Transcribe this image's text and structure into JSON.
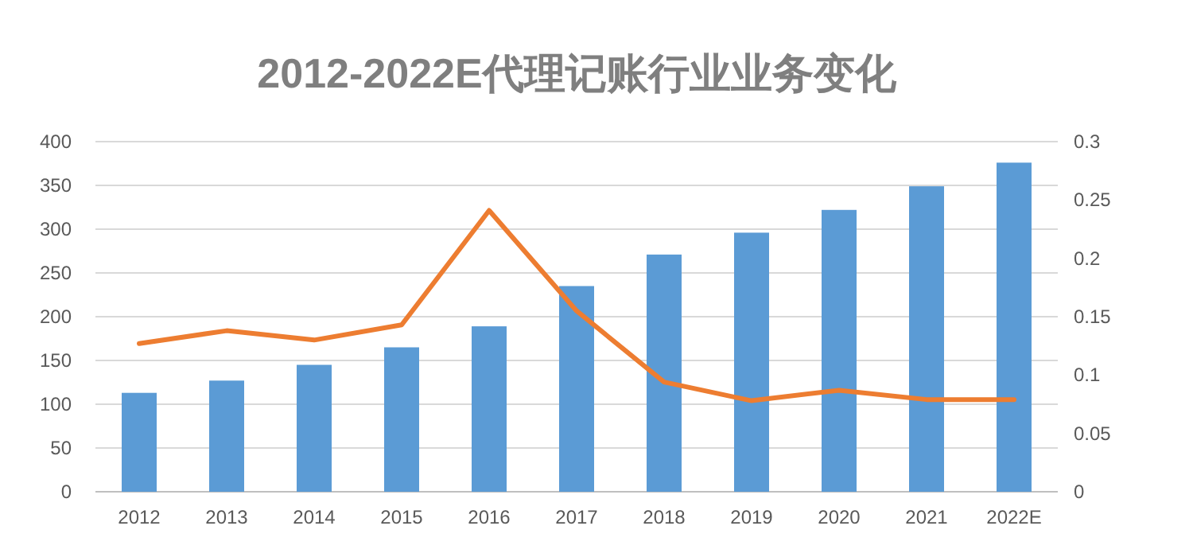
{
  "chart_data": {
    "type": "bar",
    "title": "2012-2022E代理记账行业业务变化",
    "categories": [
      "2012",
      "2013",
      "2014",
      "2015",
      "2016",
      "2017",
      "2018",
      "2019",
      "2020",
      "2021",
      "2022E"
    ],
    "series": [
      {
        "color": "#5b9bd5",
        "values": [
          113,
          127,
          145,
          165,
          189,
          235,
          271,
          296,
          322,
          349,
          376
        ]
      },
      {
        "type": "line",
        "axis": "y2",
        "color": "#ed7d31",
        "values": [
          0.127,
          0.138,
          0.13,
          0.143,
          0.241,
          0.155,
          0.094,
          0.078,
          0.087,
          0.079,
          0.079
        ]
      }
    ],
    "ylim": [
      0,
      400
    ],
    "yticks": [
      0,
      50,
      100,
      150,
      200,
      250,
      300,
      350,
      400
    ],
    "y2lim": [
      0,
      0.3
    ],
    "y2ticks": [
      0,
      0.05,
      0.1,
      0.15,
      0.2,
      0.25,
      0.3
    ],
    "grid": "y"
  }
}
